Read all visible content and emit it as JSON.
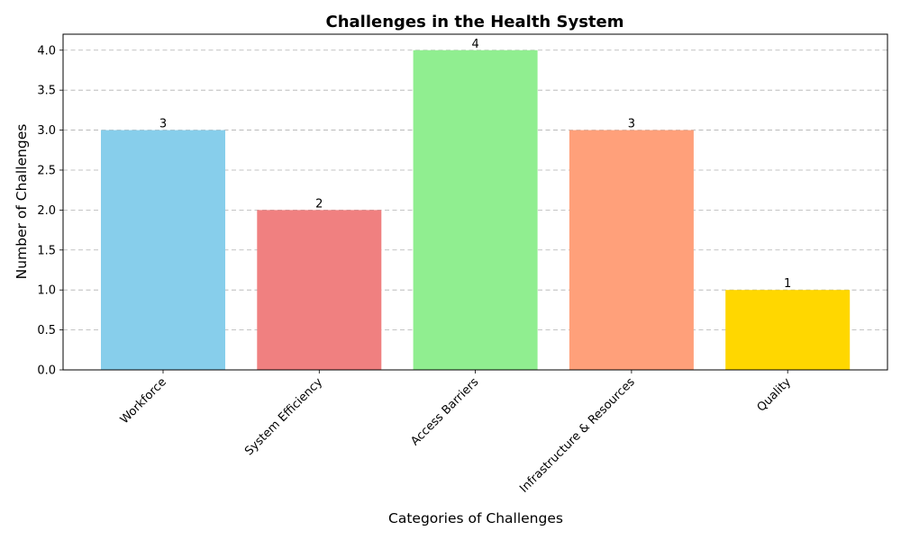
{
  "chart_data": {
    "type": "bar",
    "title": "Challenges in the Health System",
    "xlabel": "Categories of Challenges",
    "ylabel": "Number of Challenges",
    "categories": [
      "Workforce",
      "System Efficiency",
      "Access Barriers",
      "Infrastructure & Resources",
      "Quality"
    ],
    "values": [
      3,
      2,
      4,
      3,
      1
    ],
    "colors": [
      "#87CEEB",
      "#F08080",
      "#90EE90",
      "#FFA07A",
      "#FFD700"
    ],
    "ylim": [
      0,
      4.2
    ],
    "yticks": [
      "0.0",
      "0.5",
      "1.0",
      "1.5",
      "2.0",
      "2.5",
      "3.0",
      "3.5",
      "4.0"
    ],
    "grid": "y-dashed",
    "legend": "none"
  }
}
